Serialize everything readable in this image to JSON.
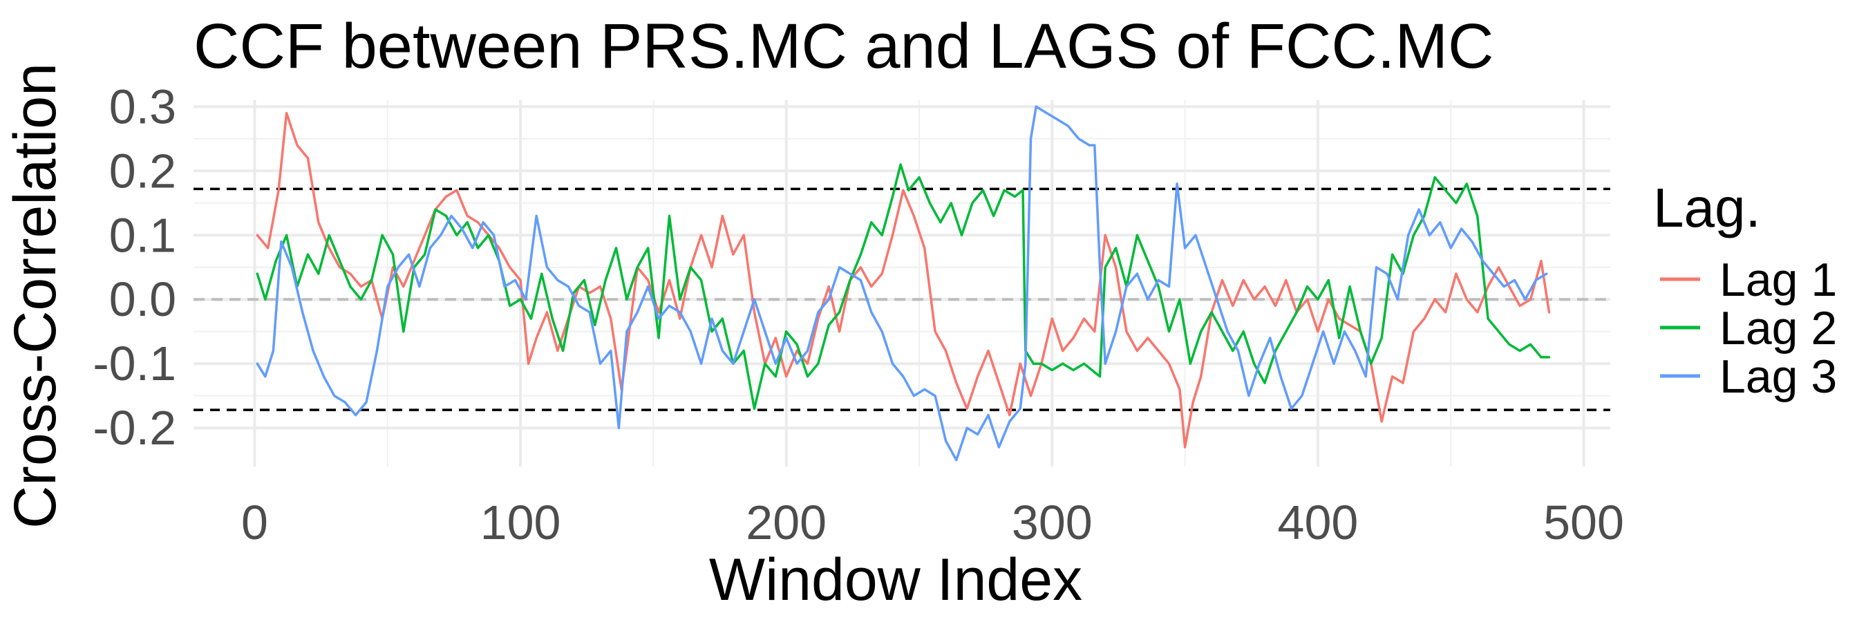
{
  "chart_data": {
    "type": "line",
    "title": "CCF between  PRS.MC and LAGS of FCC.MC",
    "xlabel": "Window Index",
    "ylabel": "Cross-Correlation",
    "xlim": [
      -23,
      510
    ],
    "ylim": [
      -0.26,
      0.31
    ],
    "x_ticks": [
      0,
      100,
      200,
      300,
      400,
      500
    ],
    "y_ticks": [
      -0.2,
      -0.1,
      0.0,
      0.1,
      0.2,
      0.3
    ],
    "y_tick_labels": [
      "-0.2",
      "-0.1",
      "0.0",
      "0.1",
      "0.2",
      "0.3"
    ],
    "grid": true,
    "confidence_bounds": [
      0.172,
      -0.172
    ],
    "zero_line": 0,
    "legend": {
      "title": "Lag.",
      "position": "right"
    },
    "series": [
      {
        "name": "Lag 1",
        "color": "#F8766D",
        "x": [
          1,
          5,
          9,
          12,
          16,
          20,
          24,
          28,
          32,
          36,
          40,
          44,
          48,
          52,
          56,
          60,
          64,
          68,
          72,
          76,
          80,
          84,
          88,
          92,
          96,
          100,
          103,
          106,
          110,
          114,
          118,
          122,
          126,
          130,
          134,
          138,
          140,
          144,
          148,
          152,
          156,
          160,
          164,
          168,
          172,
          176,
          180,
          184,
          188,
          192,
          196,
          200,
          204,
          208,
          212,
          216,
          220,
          224,
          228,
          232,
          236,
          240,
          244,
          248,
          252,
          256,
          260,
          264,
          268,
          272,
          276,
          280,
          284,
          288,
          292,
          296,
          300,
          304,
          308,
          312,
          316,
          320,
          324,
          328,
          332,
          336,
          340,
          344,
          348,
          350,
          353,
          356,
          360,
          364,
          368,
          372,
          376,
          380,
          384,
          388,
          392,
          396,
          400,
          404,
          408,
          412,
          416,
          420,
          424,
          428,
          432,
          436,
          440,
          444,
          448,
          452,
          456,
          460,
          464,
          468,
          472,
          476,
          480,
          484,
          487
        ],
        "values": [
          0.1,
          0.08,
          0.17,
          0.29,
          0.24,
          0.22,
          0.12,
          0.08,
          0.05,
          0.04,
          0.02,
          0.03,
          -0.03,
          0.05,
          0.02,
          0.06,
          0.1,
          0.14,
          0.16,
          0.17,
          0.13,
          0.12,
          0.1,
          0.08,
          0.05,
          0.03,
          -0.1,
          -0.06,
          -0.02,
          -0.08,
          -0.03,
          0.02,
          0.01,
          0.02,
          -0.03,
          -0.14,
          -0.08,
          0.05,
          0.03,
          -0.02,
          0.03,
          -0.03,
          0.05,
          0.1,
          0.05,
          0.13,
          0.07,
          0.1,
          -0.02,
          -0.1,
          -0.06,
          -0.12,
          -0.08,
          -0.1,
          -0.03,
          0.02,
          -0.05,
          0.03,
          0.05,
          0.02,
          0.04,
          0.1,
          0.17,
          0.13,
          0.08,
          -0.05,
          -0.08,
          -0.13,
          -0.17,
          -0.12,
          -0.08,
          -0.13,
          -0.18,
          -0.1,
          -0.15,
          -0.1,
          -0.03,
          -0.08,
          -0.06,
          -0.03,
          -0.05,
          0.1,
          0.05,
          -0.05,
          -0.08,
          -0.06,
          -0.08,
          -0.1,
          -0.14,
          -0.23,
          -0.16,
          -0.12,
          -0.02,
          0.03,
          -0.01,
          0.03,
          0.0,
          0.02,
          -0.01,
          0.03,
          -0.02,
          0.0,
          -0.05,
          0.0,
          -0.03,
          -0.04,
          -0.05,
          -0.1,
          -0.19,
          -0.12,
          -0.13,
          -0.05,
          -0.03,
          0.0,
          -0.02,
          0.04,
          0.0,
          -0.02,
          0.02,
          0.05,
          0.02,
          -0.01,
          0.0,
          0.06,
          -0.02
        ]
      },
      {
        "name": "Lag 2",
        "color": "#00BA38",
        "x": [
          1,
          4,
          8,
          12,
          16,
          20,
          24,
          28,
          32,
          36,
          40,
          44,
          48,
          52,
          56,
          60,
          64,
          68,
          72,
          76,
          80,
          84,
          88,
          92,
          96,
          100,
          104,
          108,
          112,
          116,
          120,
          124,
          128,
          132,
          136,
          140,
          144,
          148,
          152,
          156,
          160,
          164,
          168,
          172,
          176,
          180,
          184,
          188,
          192,
          196,
          200,
          204,
          208,
          212,
          216,
          220,
          224,
          228,
          232,
          236,
          240,
          243,
          246,
          250,
          254,
          258,
          262,
          266,
          270,
          274,
          278,
          282,
          286,
          289,
          290,
          293,
          296,
          300,
          304,
          308,
          312,
          315,
          318,
          320,
          324,
          328,
          332,
          336,
          340,
          344,
          348,
          352,
          356,
          360,
          364,
          368,
          372,
          376,
          380,
          384,
          388,
          392,
          396,
          400,
          404,
          408,
          412,
          416,
          420,
          424,
          428,
          432,
          436,
          440,
          444,
          448,
          452,
          456,
          460,
          464,
          468,
          472,
          476,
          480,
          484,
          487
        ],
        "values": [
          0.04,
          0.0,
          0.06,
          0.1,
          0.02,
          0.07,
          0.04,
          0.1,
          0.06,
          0.02,
          0.0,
          0.03,
          0.1,
          0.07,
          -0.05,
          0.05,
          0.07,
          0.14,
          0.13,
          0.1,
          0.12,
          0.08,
          0.1,
          0.06,
          -0.01,
          0.0,
          -0.03,
          0.04,
          -0.03,
          -0.08,
          0.01,
          0.03,
          -0.04,
          0.03,
          0.08,
          0.0,
          0.05,
          0.08,
          -0.06,
          0.13,
          0.0,
          0.05,
          0.03,
          -0.05,
          -0.03,
          -0.1,
          -0.08,
          -0.17,
          -0.1,
          -0.12,
          -0.05,
          -0.07,
          -0.12,
          -0.1,
          -0.04,
          -0.02,
          0.03,
          0.07,
          0.12,
          0.1,
          0.16,
          0.21,
          0.17,
          0.19,
          0.15,
          0.12,
          0.15,
          0.1,
          0.15,
          0.17,
          0.13,
          0.17,
          0.16,
          0.17,
          -0.08,
          -0.1,
          -0.1,
          -0.11,
          -0.1,
          -0.11,
          -0.1,
          -0.11,
          -0.12,
          0.05,
          0.08,
          0.02,
          0.1,
          0.06,
          0.02,
          -0.05,
          0.0,
          -0.1,
          -0.05,
          -0.02,
          -0.05,
          -0.08,
          -0.05,
          -0.1,
          -0.13,
          -0.08,
          -0.05,
          -0.02,
          0.02,
          0.0,
          0.03,
          -0.06,
          0.02,
          -0.05,
          -0.1,
          -0.06,
          0.07,
          0.04,
          0.1,
          0.13,
          0.19,
          0.17,
          0.15,
          0.18,
          0.13,
          -0.03,
          -0.05,
          -0.07,
          -0.08,
          -0.07,
          -0.09,
          -0.09
        ]
      },
      {
        "name": "Lag 3",
        "color": "#619CFF",
        "x": [
          1,
          4,
          7,
          10,
          14,
          18,
          22,
          26,
          30,
          34,
          38,
          42,
          46,
          50,
          54,
          58,
          62,
          66,
          70,
          74,
          78,
          82,
          86,
          90,
          94,
          98,
          102,
          106,
          110,
          114,
          118,
          122,
          126,
          130,
          134,
          137,
          140,
          144,
          148,
          152,
          156,
          160,
          164,
          168,
          172,
          176,
          180,
          184,
          188,
          192,
          196,
          200,
          204,
          208,
          212,
          216,
          220,
          224,
          228,
          232,
          236,
          240,
          244,
          248,
          252,
          256,
          260,
          264,
          268,
          272,
          276,
          280,
          284,
          288,
          290,
          292,
          294,
          298,
          302,
          306,
          310,
          314,
          316,
          318,
          320,
          324,
          328,
          332,
          336,
          340,
          344,
          347,
          350,
          354,
          358,
          362,
          366,
          370,
          374,
          378,
          382,
          386,
          390,
          394,
          398,
          402,
          406,
          410,
          414,
          418,
          422,
          426,
          430,
          434,
          438,
          442,
          446,
          450,
          454,
          458,
          462,
          466,
          470,
          474,
          478,
          482,
          486
        ],
        "values": [
          -0.1,
          -0.12,
          -0.08,
          0.09,
          0.05,
          -0.02,
          -0.08,
          -0.12,
          -0.15,
          -0.16,
          -0.18,
          -0.16,
          -0.08,
          0.02,
          0.05,
          0.07,
          0.02,
          0.08,
          0.1,
          0.13,
          0.11,
          0.08,
          0.12,
          0.1,
          0.02,
          0.03,
          0.0,
          0.13,
          0.05,
          0.03,
          0.02,
          -0.01,
          -0.02,
          -0.1,
          -0.08,
          -0.2,
          -0.05,
          -0.02,
          0.02,
          -0.03,
          -0.01,
          -0.02,
          -0.05,
          -0.1,
          -0.03,
          -0.08,
          -0.1,
          -0.05,
          0.0,
          -0.05,
          -0.1,
          -0.06,
          -0.1,
          -0.08,
          -0.02,
          0.0,
          0.05,
          0.04,
          0.03,
          -0.02,
          -0.05,
          -0.1,
          -0.12,
          -0.15,
          -0.14,
          -0.15,
          -0.22,
          -0.25,
          -0.2,
          -0.21,
          -0.18,
          -0.23,
          -0.19,
          -0.17,
          -0.1,
          0.25,
          0.3,
          0.29,
          0.28,
          0.27,
          0.25,
          0.24,
          0.24,
          0.05,
          -0.1,
          -0.05,
          0.02,
          0.04,
          0.0,
          0.03,
          0.02,
          0.18,
          0.08,
          0.1,
          0.05,
          0.0,
          -0.05,
          -0.08,
          -0.15,
          -0.1,
          -0.06,
          -0.12,
          -0.17,
          -0.15,
          -0.1,
          -0.05,
          -0.1,
          -0.05,
          -0.08,
          -0.12,
          0.05,
          0.04,
          0.0,
          0.1,
          0.14,
          0.1,
          0.12,
          0.08,
          0.11,
          0.09,
          0.06,
          0.04,
          0.02,
          0.03,
          0.0,
          0.03,
          0.04
        ]
      }
    ]
  }
}
